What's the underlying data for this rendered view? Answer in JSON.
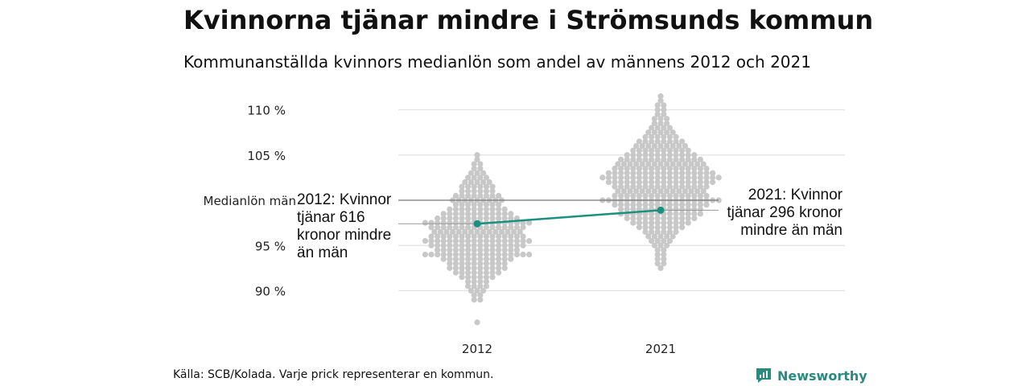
{
  "chart_data": {
    "type": "scatter",
    "subtype": "beeswarm",
    "title": "Kvinnorna tjänar mindre i Strömsunds kommun",
    "subtitle": "Kommunanställda kvinnors medianlön som andel av männens 2012 och 2021",
    "ylabel": "",
    "ylim": [
      86,
      112
    ],
    "yticks": [
      {
        "value": 110,
        "label": "110 %"
      },
      {
        "value": 105,
        "label": "105 %"
      },
      {
        "value": 95,
        "label": "95 %"
      },
      {
        "value": 90,
        "label": "90 %"
      }
    ],
    "reference_line": {
      "value": 100,
      "label": "Medianlön män"
    },
    "categories": [
      "2012",
      "2021"
    ],
    "bin_width": 0.5,
    "distributions": [
      {
        "year": "2012",
        "bin_top": 105,
        "counts": [
          1,
          1,
          2,
          2,
          3,
          4,
          5,
          6,
          6,
          8,
          9,
          8,
          10,
          12,
          14,
          18,
          16,
          15,
          16,
          18,
          16,
          14,
          18,
          12,
          10,
          10,
          8,
          6,
          4,
          4,
          3,
          2,
          2,
          0,
          0,
          0,
          0,
          1
        ]
      },
      {
        "year": "2021",
        "bin_top": 111.5,
        "counts": [
          1,
          1,
          2,
          2,
          2,
          3,
          3,
          4,
          5,
          6,
          8,
          9,
          10,
          12,
          14,
          15,
          16,
          18,
          20,
          18,
          16,
          15,
          16,
          20,
          16,
          14,
          14,
          12,
          10,
          8,
          6,
          5,
          4,
          3,
          2,
          2,
          2,
          2,
          1
        ]
      }
    ],
    "highlight": {
      "name": "Strömsund",
      "color": "#1a9080",
      "values": [
        {
          "year": "2012",
          "value": 97.4
        },
        {
          "year": "2021",
          "value": 98.9
        }
      ]
    },
    "annotations": {
      "2012": [
        "2012: Kvinnor",
        "tjänar 616",
        "kronor mindre",
        "än män"
      ],
      "2021": [
        "2021: Kvinnor",
        "tjänar 296 kronor",
        "mindre än män"
      ]
    },
    "dot_color": "#c8c8c8",
    "grid": true
  },
  "source": "Källa: SCB/Kolada. Varje prick representerar en kommun.",
  "brand": "Newsworthy"
}
